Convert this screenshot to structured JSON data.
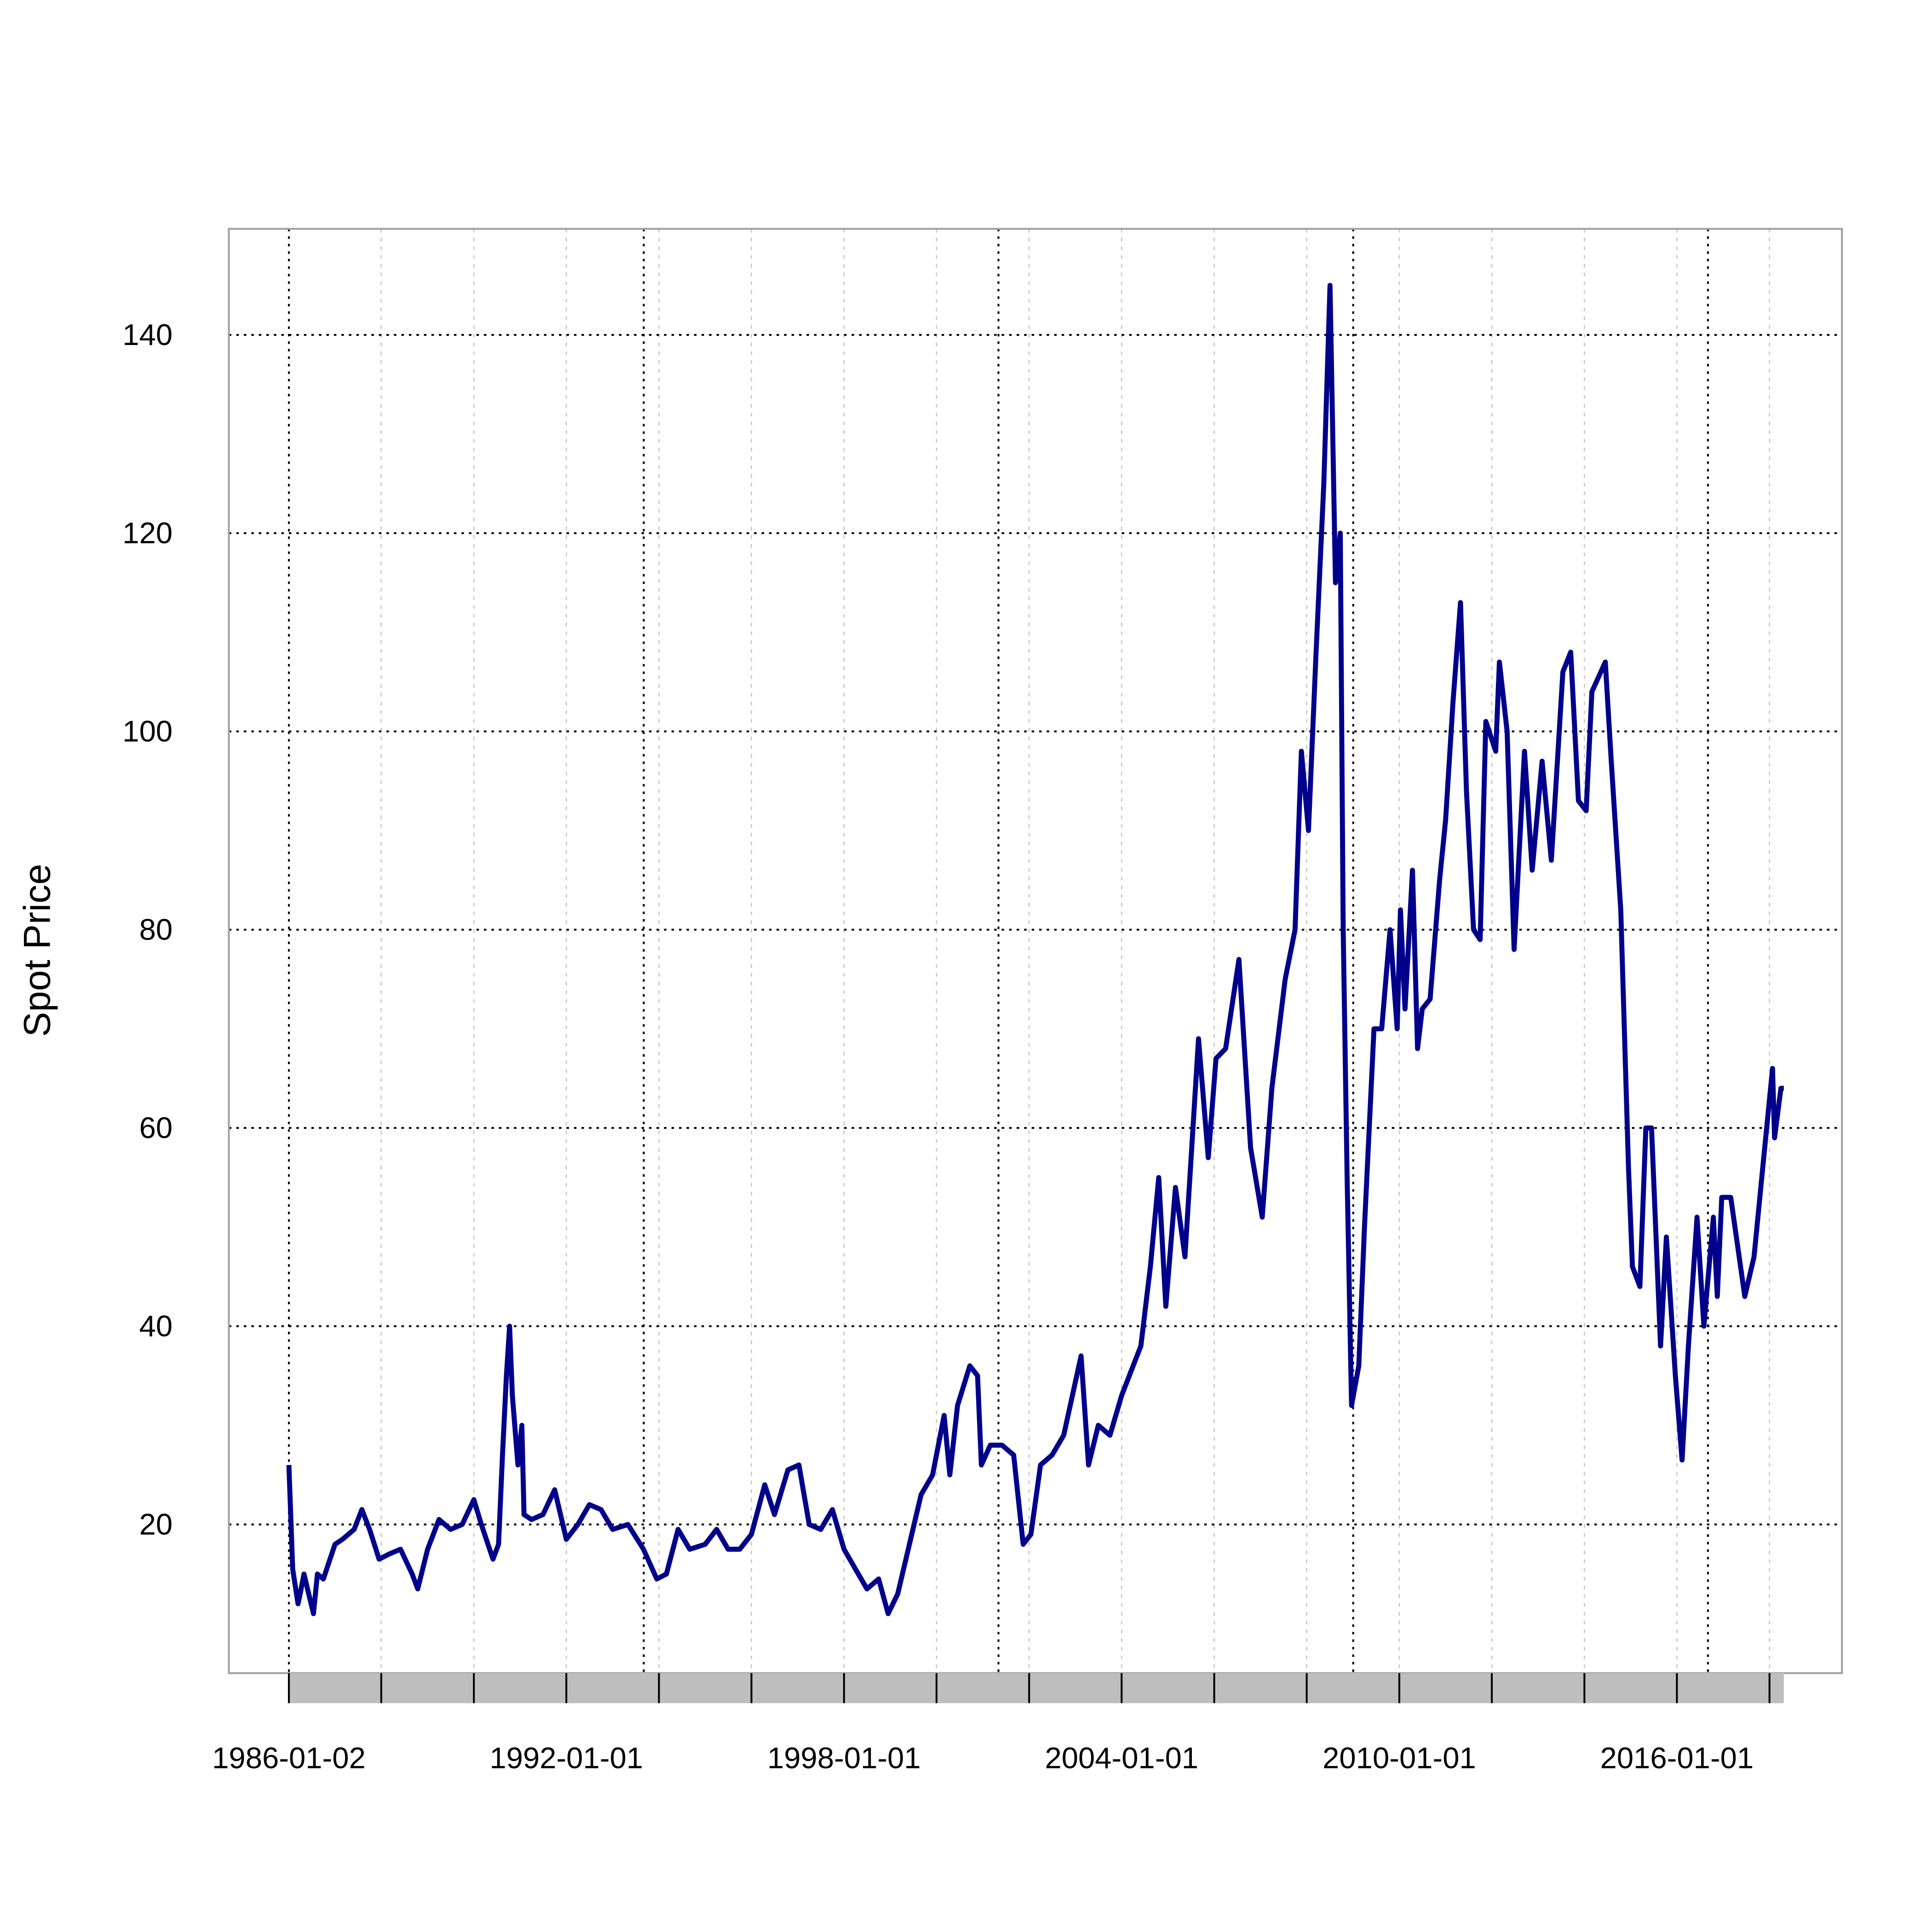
{
  "chart_data": {
    "type": "line",
    "y_label": "Spot Price",
    "color": "#00008b",
    "x": [
      "1986-01-02",
      "1986-02-01",
      "1986-03-15",
      "1986-04-01",
      "1986-05-01",
      "1986-07-15",
      "1986-08-15",
      "1986-10-01",
      "1987-01-01",
      "1987-03-01",
      "1987-06-01",
      "1987-08-01",
      "1987-10-01",
      "1987-12-15",
      "1988-03-01",
      "1988-06-01",
      "1988-09-01",
      "1988-10-15",
      "1989-01-01",
      "1989-04-01",
      "1989-07-01",
      "1989-10-01",
      "1990-01-01",
      "1990-03-01",
      "1990-06-01",
      "1990-07-15",
      "1990-08-15",
      "1990-09-15",
      "1990-10-10",
      "1990-11-01",
      "1990-12-15",
      "1991-01-15",
      "1991-02-01",
      "1991-04-01",
      "1991-07-01",
      "1991-10-01",
      "1992-01-01",
      "1992-04-01",
      "1992-07-01",
      "1992-10-01",
      "1993-01-01",
      "1993-05-01",
      "1993-09-01",
      "1993-12-15",
      "1994-03-01",
      "1994-06-01",
      "1994-09-01",
      "1995-01-01",
      "1995-04-01",
      "1995-07-01",
      "1995-10-01",
      "1996-01-01",
      "1996-04-15",
      "1996-07-01",
      "1996-10-15",
      "1997-01-10",
      "1997-04-01",
      "1997-07-01",
      "1997-10-01",
      "1998-01-01",
      "1998-04-01",
      "1998-07-01",
      "1998-10-01",
      "1998-12-15",
      "1999-03-01",
      "1999-06-01",
      "1999-09-01",
      "1999-12-01",
      "2000-03-01",
      "2000-04-15",
      "2000-06-15",
      "2000-09-20",
      "2000-11-20",
      "2000-12-20",
      "2001-03-01",
      "2001-06-01",
      "2001-09-01",
      "2001-11-15",
      "2002-01-15",
      "2002-04-01",
      "2002-07-01",
      "2002-10-01",
      "2003-02-15",
      "2003-04-15",
      "2003-07-01",
      "2003-10-01",
      "2004-01-01",
      "2004-04-01",
      "2004-06-01",
      "2004-08-15",
      "2004-10-20",
      "2004-12-15",
      "2005-03-01",
      "2005-05-15",
      "2005-08-30",
      "2005-11-15",
      "2006-01-15",
      "2006-04-01",
      "2006-07-15",
      "2006-10-15",
      "2007-01-15",
      "2007-04-01",
      "2007-07-15",
      "2007-10-01",
      "2007-11-20",
      "2008-01-15",
      "2008-03-15",
      "2008-05-15",
      "2008-07-03",
      "2008-08-15",
      "2008-09-22",
      "2008-10-15",
      "2008-11-15",
      "2008-12-20",
      "2009-02-15",
      "2009-04-01",
      "2009-06-15",
      "2009-08-15",
      "2009-10-20",
      "2009-12-15",
      "2010-01-10",
      "2010-02-15",
      "2010-04-15",
      "2010-05-25",
      "2010-07-01",
      "2010-09-01",
      "2010-11-15",
      "2011-01-01",
      "2011-03-01",
      "2011-04-29",
      "2011-06-15",
      "2011-08-10",
      "2011-10-01",
      "2011-11-15",
      "2012-02-01",
      "2012-03-01",
      "2012-05-01",
      "2012-06-25",
      "2012-09-15",
      "2012-11-15",
      "2013-02-01",
      "2013-04-15",
      "2013-07-15",
      "2013-09-15",
      "2013-11-15",
      "2014-01-15",
      "2014-03-01",
      "2014-06-15",
      "2014-08-01",
      "2014-10-15",
      "2014-12-15",
      "2015-01-15",
      "2015-03-15",
      "2015-05-01",
      "2015-06-15",
      "2015-08-25",
      "2015-10-10",
      "2015-12-20",
      "2016-02-11",
      "2016-04-01",
      "2016-06-08",
      "2016-08-01",
      "2016-10-15",
      "2016-11-15",
      "2016-12-20",
      "2017-03-01",
      "2017-06-20",
      "2017-09-01",
      "2017-11-01",
      "2018-01-25",
      "2018-02-10",
      "2018-04-01",
      "2018-04-24"
    ],
    "values": [
      26,
      15.5,
      12,
      13,
      15,
      11,
      15,
      14.5,
      18,
      18.5,
      19.5,
      21.5,
      19.5,
      16.5,
      17,
      17.5,
      15,
      13.5,
      17.5,
      20.5,
      19.5,
      20,
      22.5,
      20,
      16.5,
      18,
      27,
      35,
      40,
      33,
      26,
      30,
      21,
      20.5,
      21,
      23.5,
      18.5,
      20,
      22,
      21.5,
      19.5,
      20,
      17.5,
      14.5,
      15,
      19.5,
      17.5,
      18,
      19.5,
      17.5,
      17.5,
      19,
      24,
      21,
      25.5,
      26,
      20,
      19.5,
      21.5,
      17.5,
      15.5,
      13.5,
      14.5,
      11,
      13,
      18,
      23,
      25,
      31,
      25,
      32,
      36,
      35,
      26,
      28,
      28,
      27,
      18,
      19,
      26,
      27,
      29,
      37,
      26,
      30,
      29,
      33,
      36,
      38,
      46,
      55,
      42,
      54,
      47,
      69,
      57,
      67,
      68,
      77,
      58,
      51,
      64,
      75,
      80,
      98,
      90,
      108,
      125,
      145,
      115,
      120,
      80,
      55,
      32,
      36,
      50,
      70,
      70,
      80,
      70,
      82,
      72,
      86,
      68,
      72,
      73,
      85,
      91,
      103,
      113,
      94,
      80,
      79,
      101,
      98,
      107,
      100,
      78,
      98,
      86,
      97,
      87,
      106,
      108,
      93,
      92,
      104,
      107,
      97,
      82,
      56,
      46,
      44,
      60,
      60,
      38,
      49,
      35,
      26.5,
      38,
      51,
      40,
      51,
      43,
      53,
      53,
      43,
      47,
      55,
      66,
      59,
      64,
      64
    ],
    "xlim": [
      "1984-09-15",
      "2019-07-27"
    ],
    "xticks": [
      "1986-01-02",
      "1992-01-01",
      "1998-01-01",
      "2004-01-01",
      "2010-01-01",
      "2016-01-01"
    ],
    "xminor_ticks": [
      "1988-01-01",
      "1990-01-01",
      "1994-01-01",
      "1996-01-01",
      "2000-01-01",
      "2002-01-01",
      "2006-01-01",
      "2008-01-01",
      "2012-01-01",
      "2014-01-01",
      "2018-01-01"
    ],
    "xgrid_major": [
      "1986-01-02",
      "1993-09-03",
      "2001-05-04",
      "2009-01-02",
      "2016-09-02"
    ],
    "ylim": [
      5,
      150.7
    ],
    "yticks": [
      20,
      40,
      60,
      80,
      100,
      120,
      140
    ],
    "grid": true
  }
}
